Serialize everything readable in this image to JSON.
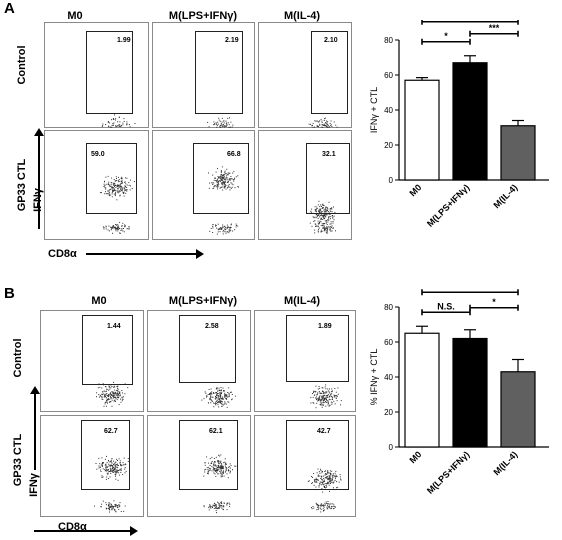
{
  "panels": [
    {
      "letter": "A",
      "columns": [
        "M0",
        "M(LPS+IFNγ)",
        "M(IL-4)"
      ],
      "rows": [
        "Control",
        "GP33 CTL"
      ],
      "gate_values": [
        [
          "1.99",
          "2.19",
          "2.10"
        ],
        [
          "59.0",
          "66.8",
          "32.1"
        ]
      ],
      "y_axis_label": "IFNγ",
      "x_axis_label": "CD8α"
    },
    {
      "letter": "B",
      "columns": [
        "M0",
        "M(LPS+IFNγ)",
        "M(IL-4)"
      ],
      "rows": [
        "Control",
        "GP33 CTL"
      ],
      "gate_values": [
        [
          "1.44",
          "2.58",
          "1.89"
        ],
        [
          "62.7",
          "62.1",
          "42.7"
        ]
      ],
      "y_axis_label": "IFNγ",
      "x_axis_label": "CD8α"
    }
  ],
  "chart_data": [
    {
      "type": "bar",
      "categories": [
        "M0",
        "M(LPS+IFNγ)",
        "M(IL-4)"
      ],
      "values": [
        57,
        67,
        31
      ],
      "errors": [
        1.5,
        4,
        3
      ],
      "bar_colors": [
        "#ffffff",
        "#000000",
        "#606060"
      ],
      "ylabel": "IFNγ + CTL",
      "ylim": [
        0,
        80
      ],
      "yticks": [
        0,
        20,
        40,
        60,
        80
      ],
      "significance": [
        {
          "from": 0,
          "to": 1,
          "label": "*"
        },
        {
          "from": 0,
          "to": 2,
          "label": "***"
        },
        {
          "from": 1,
          "to": 2,
          "label": "***"
        }
      ]
    },
    {
      "type": "bar",
      "categories": [
        "M0",
        "M(LPS+IFNγ)",
        "M(IL-4)"
      ],
      "values": [
        65,
        62,
        43
      ],
      "errors": [
        4,
        5,
        7
      ],
      "bar_colors": [
        "#ffffff",
        "#000000",
        "#606060"
      ],
      "ylabel": "% IFNγ + CTL",
      "ylim": [
        0,
        80
      ],
      "yticks": [
        0,
        20,
        40,
        60,
        80
      ],
      "significance": [
        {
          "from": 0,
          "to": 1,
          "label": "N.S."
        },
        {
          "from": 0,
          "to": 2,
          "label": "**"
        },
        {
          "from": 1,
          "to": 2,
          "label": "*"
        }
      ]
    }
  ]
}
